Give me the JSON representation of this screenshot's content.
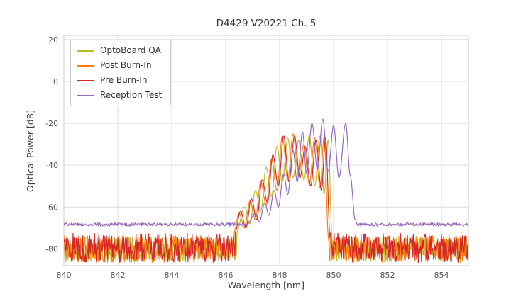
{
  "chart_data": {
    "type": "line",
    "title": "D4429 V20221 Ch. 5",
    "xlabel": "Wavelength [nm]",
    "ylabel": "Optical Power [dB]",
    "xlim": [
      840,
      855
    ],
    "ylim": [
      -88,
      22
    ],
    "xticks": [
      840,
      842,
      844,
      846,
      848,
      850,
      852,
      854
    ],
    "yticks": [
      20,
      0,
      -20,
      -40,
      -60,
      -80
    ],
    "grid": true,
    "grid_color": "#dcdcdc",
    "spine_color": "#cccccc",
    "legend_position": "upper left",
    "series": [
      {
        "name": "OptoBoard QA",
        "color": "#bcbd22",
        "noise": {
          "floor": -80.5,
          "amp": 6.0
        },
        "envelope": [
          [
            846.4,
            -72
          ],
          [
            846.7,
            -60
          ],
          [
            846.9,
            -68
          ],
          [
            847.1,
            -52
          ],
          [
            847.3,
            -62
          ],
          [
            847.5,
            -41
          ],
          [
            847.7,
            -55
          ],
          [
            847.9,
            -31
          ],
          [
            848.1,
            -48
          ],
          [
            848.3,
            -27
          ],
          [
            848.5,
            -46
          ],
          [
            848.7,
            -28
          ],
          [
            848.9,
            -47
          ],
          [
            849.1,
            -26
          ],
          [
            849.3,
            -50
          ],
          [
            849.5,
            -26
          ],
          [
            849.65,
            -54
          ],
          [
            849.8,
            -28
          ],
          [
            849.95,
            -76
          ]
        ]
      },
      {
        "name": "Post Burn-In",
        "color": "#ff7f0e",
        "noise": {
          "floor": -80.0,
          "amp": 6.5
        },
        "envelope": [
          [
            846.3,
            -72
          ],
          [
            846.5,
            -63
          ],
          [
            846.7,
            -70
          ],
          [
            846.9,
            -57
          ],
          [
            847.1,
            -66
          ],
          [
            847.3,
            -48
          ],
          [
            847.5,
            -59
          ],
          [
            847.7,
            -37
          ],
          [
            847.9,
            -52
          ],
          [
            848.1,
            -26
          ],
          [
            848.3,
            -47
          ],
          [
            848.5,
            -25
          ],
          [
            848.7,
            -45
          ],
          [
            848.9,
            -30
          ],
          [
            849.1,
            -49
          ],
          [
            849.3,
            -27
          ],
          [
            849.5,
            -51
          ],
          [
            849.65,
            -26
          ],
          [
            849.82,
            -76
          ]
        ]
      },
      {
        "name": "Pre Burn-In",
        "color": "#d62728",
        "noise": {
          "floor": -79.5,
          "amp": 7.0
        },
        "envelope": [
          [
            846.35,
            -72
          ],
          [
            846.55,
            -62
          ],
          [
            846.75,
            -70
          ],
          [
            846.95,
            -56
          ],
          [
            847.15,
            -66
          ],
          [
            847.35,
            -47
          ],
          [
            847.55,
            -58
          ],
          [
            847.75,
            -35
          ],
          [
            847.95,
            -50
          ],
          [
            848.15,
            -26
          ],
          [
            848.35,
            -48
          ],
          [
            848.55,
            -26
          ],
          [
            848.75,
            -46
          ],
          [
            848.95,
            -31
          ],
          [
            849.15,
            -50
          ],
          [
            849.35,
            -28
          ],
          [
            849.55,
            -52
          ],
          [
            849.7,
            -27
          ],
          [
            849.88,
            -76
          ]
        ]
      },
      {
        "name": "Reception Test",
        "color": "#9467bd",
        "noise": {
          "floor": -68.3,
          "amp": 0.8
        },
        "envelope": [
          [
            846.8,
            -68
          ],
          [
            847.1,
            -63
          ],
          [
            847.25,
            -67
          ],
          [
            847.45,
            -58
          ],
          [
            847.6,
            -64
          ],
          [
            847.8,
            -52
          ],
          [
            847.95,
            -60
          ],
          [
            848.15,
            -44
          ],
          [
            848.3,
            -54
          ],
          [
            848.5,
            -33
          ],
          [
            848.65,
            -48
          ],
          [
            848.85,
            -24
          ],
          [
            849.0,
            -44
          ],
          [
            849.2,
            -20
          ],
          [
            849.4,
            -42
          ],
          [
            849.6,
            -18
          ],
          [
            849.8,
            -43
          ],
          [
            850.0,
            -21
          ],
          [
            850.2,
            -46
          ],
          [
            850.45,
            -20
          ],
          [
            850.62,
            -45
          ],
          [
            850.8,
            -66
          ],
          [
            850.9,
            -69
          ]
        ]
      }
    ]
  }
}
